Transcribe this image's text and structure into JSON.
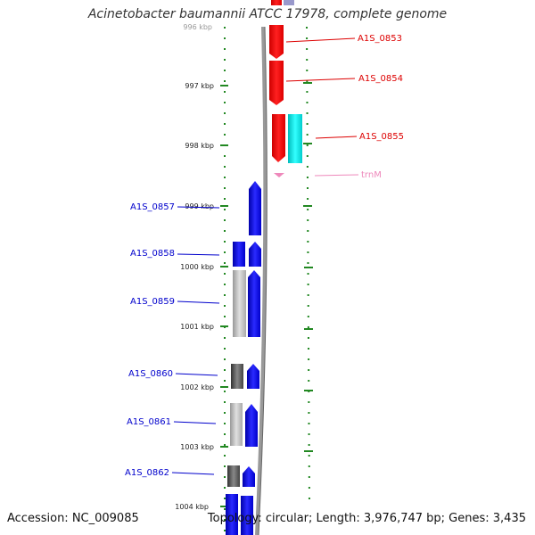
{
  "title": "Acinetobacter baumannii ATCC 17978, complete genome",
  "accession": "Accession: NC_009085",
  "summary": "Topology: circular; Length: 3,976,747 bp; Genes: 3,435",
  "ruler": {
    "partial_top_label": "996 kbp",
    "ticks": [
      "997 kbp",
      "998 kbp",
      "999 kbp",
      "1000 kbp",
      "1001 kbp",
      "1002 kbp",
      "1003 kbp",
      "1004 kbp"
    ]
  },
  "colors": {
    "forward_cds": "#1010ee",
    "reverse_cds": "#ee1010",
    "reverse_other": "#00e0e0",
    "trna": "#ee88bb",
    "cog_gray_light": "#bbbbbb",
    "cog_gray_dark": "#555555",
    "tick_green": "#228822",
    "backbone": "#888888"
  },
  "reverse_strand_genes": [
    {
      "name": "A1S_0853",
      "type": "CDS"
    },
    {
      "name": "A1S_0854",
      "type": "CDS"
    },
    {
      "name": "A1S_0855",
      "type": "CDS"
    },
    {
      "name": "trnM",
      "type": "tRNA"
    }
  ],
  "forward_strand_genes": [
    {
      "name": "A1S_0857",
      "type": "CDS"
    },
    {
      "name": "A1S_0858",
      "type": "CDS"
    },
    {
      "name": "A1S_0859",
      "type": "CDS"
    },
    {
      "name": "A1S_0860",
      "type": "CDS"
    },
    {
      "name": "A1S_0861",
      "type": "CDS"
    },
    {
      "name": "A1S_0862",
      "type": "CDS"
    }
  ]
}
